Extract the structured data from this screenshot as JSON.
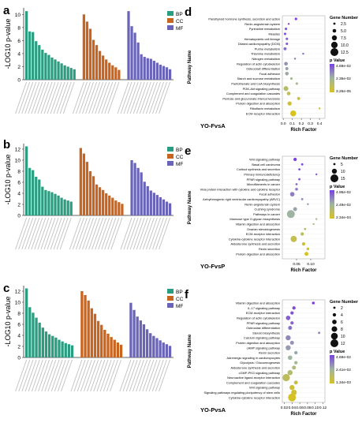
{
  "panels": {
    "a": "a",
    "b": "b",
    "c": "c",
    "d": "d",
    "e": "e",
    "f": "f"
  },
  "go_charts": [
    {
      "id": "a",
      "ylabel": "-LOG10 p-value",
      "yticks": [
        "0",
        "2",
        "4",
        "6",
        "8",
        "10"
      ],
      "ymax": 11,
      "legend": [
        "BP",
        "CC",
        "MF"
      ],
      "groups": [
        {
          "name": "BP",
          "values": [
            10.5,
            7.4,
            7.3,
            5.9,
            5.3,
            4.6,
            4.1,
            3.8,
            3.4,
            3.1,
            2.8,
            2.5,
            2.2,
            2.0,
            1.8,
            1.6
          ]
        },
        {
          "name": "CC",
          "values": [
            10.0,
            8.9,
            7.8,
            6.1,
            5.3,
            4.4,
            3.7,
            3.1,
            2.6,
            2.2,
            1.9,
            1.5
          ]
        },
        {
          "name": "MF",
          "values": [
            10.5,
            8.2,
            7.2,
            5.7,
            3.9,
            3.5,
            3.3,
            3.2,
            2.9,
            2.6,
            2.3,
            2.1,
            1.9,
            1.6
          ]
        }
      ]
    },
    {
      "id": "b",
      "ylabel": "-LOG10 p-value",
      "yticks": [
        "0",
        "2",
        "4",
        "6",
        "8",
        "10",
        "12"
      ],
      "ymax": 13,
      "legend": [
        "BP",
        "CC",
        "MF"
      ],
      "groups": [
        {
          "name": "BP",
          "values": [
            12.5,
            8.6,
            8.2,
            7.0,
            6.5,
            5.2,
            4.6,
            4.4,
            4.2,
            3.9,
            3.6,
            3.2,
            2.9,
            2.7,
            2.5
          ]
        },
        {
          "name": "CC",
          "values": [
            12.2,
            11.2,
            9.7,
            8.0,
            7.1,
            5.6,
            5.1,
            4.6,
            4.0,
            3.6,
            3.2,
            2.7,
            2.4,
            2.1
          ]
        },
        {
          "name": "MF",
          "values": [
            10.0,
            9.5,
            8.6,
            7.8,
            6.1,
            5.3,
            4.5,
            4.1,
            3.7,
            3.3,
            2.9,
            2.5,
            2.2
          ]
        }
      ]
    },
    {
      "id": "c",
      "ylabel": "-LOG10 p-value",
      "yticks": [
        "0",
        "2",
        "4",
        "6",
        "8",
        "10",
        "12"
      ],
      "ymax": 13,
      "legend": [
        "BP",
        "CC",
        "MF"
      ],
      "groups": [
        {
          "name": "BP",
          "values": [
            12.5,
            9.1,
            8.1,
            7.2,
            6.3,
            5.4,
            4.7,
            4.2,
            3.9,
            3.6,
            3.2,
            2.9,
            2.6,
            2.4,
            2.2
          ]
        },
        {
          "name": "CC",
          "values": [
            12.0,
            11.3,
            10.3,
            8.9,
            7.9,
            6.6,
            5.9,
            5.0,
            4.3,
            3.7,
            3.2,
            2.7,
            2.3
          ]
        },
        {
          "name": "MF",
          "values": [
            9.9,
            8.6,
            7.4,
            6.7,
            6.0,
            5.1,
            4.4,
            3.9,
            3.5,
            3.1,
            2.7,
            2.4,
            2.1
          ]
        }
      ]
    }
  ],
  "chart_data": [
    {
      "type": "scatter",
      "panel": "d",
      "title": "YO-FvsA",
      "xlabel": "Rich Factor",
      "ylabel": "Pathway Name",
      "xticks": [
        "0.0",
        "0.1",
        "0.2",
        "0.3",
        "0.4"
      ],
      "xlim": [
        -0.01,
        0.46
      ],
      "size_legend_title": "Gene Number",
      "size_legend": [
        "2.5",
        "5.0",
        "7.5",
        "10.0",
        "12.5"
      ],
      "size_range": [
        2.5,
        12.5
      ],
      "color_legend_title": "p Value",
      "color_legend": [
        "4.69e-02",
        "2.35e-02",
        "3.26e-05"
      ],
      "points": [
        {
          "name": "Parathyroid hormone synthesis, secretion and action",
          "x": 0.14,
          "size": 3,
          "p": 0.04
        },
        {
          "name": "Renin-angiotensin system",
          "x": 0.06,
          "size": 2,
          "p": 0.038
        },
        {
          "name": "Pyrimidine metabolism",
          "x": 0.03,
          "size": 3,
          "p": 0.036
        },
        {
          "name": "Measles",
          "x": 0.02,
          "size": 3,
          "p": 0.036
        },
        {
          "name": "Hematopoietic cell lineage",
          "x": 0.04,
          "size": 3,
          "p": 0.034
        },
        {
          "name": "Dilated cardiomyopathy (DCM)",
          "x": 0.04,
          "size": 3,
          "p": 0.034
        },
        {
          "name": "Purine metabolism",
          "x": 0.02,
          "size": 4,
          "p": 0.032
        },
        {
          "name": "Thiamine metabolism",
          "x": 0.22,
          "size": 2,
          "p": 0.032
        },
        {
          "name": "Nitrogen metabolism",
          "x": 0.13,
          "size": 2,
          "p": 0.03
        },
        {
          "name": "Regulation of actin cytoskeleton",
          "x": 0.03,
          "size": 5,
          "p": 0.026
        },
        {
          "name": "Osteoclast differentiation",
          "x": 0.04,
          "size": 4,
          "p": 0.024
        },
        {
          "name": "Focal adhesion",
          "x": 0.04,
          "size": 5,
          "p": 0.022
        },
        {
          "name": "Starch and sucrose metabolism",
          "x": 0.09,
          "size": 3,
          "p": 0.018
        },
        {
          "name": "Pantothenate and CoA biosynthesis",
          "x": 0.15,
          "size": 3,
          "p": 0.016
        },
        {
          "name": "PI3K-Akt signaling pathway",
          "x": 0.03,
          "size": 7,
          "p": 0.012
        },
        {
          "name": "Complement and coagulation cascades",
          "x": 0.06,
          "size": 5,
          "p": 0.008
        },
        {
          "name": "Pentose and glucuronate interconversions",
          "x": 0.17,
          "size": 4,
          "p": 0.006
        },
        {
          "name": "Protein digestion and absorption",
          "x": 0.07,
          "size": 6,
          "p": 0.004
        },
        {
          "name": "Riboflavin metabolism",
          "x": 0.4,
          "size": 2,
          "p": 0.002
        },
        {
          "name": "ECM-receptor interaction",
          "x": 0.11,
          "size": 9,
          "p": 0.0001
        }
      ]
    },
    {
      "type": "scatter",
      "panel": "e",
      "title": "YO-FvsP",
      "xlabel": "Rich Factor",
      "ylabel": "Pathway Name",
      "xticks": [
        "0.05",
        "0.10"
      ],
      "xlim": [
        0.0,
        0.15
      ],
      "size_legend_title": "Gene Number",
      "size_legend": [
        "5",
        "10",
        "15"
      ],
      "size_range": [
        5,
        15
      ],
      "color_legend_title": "p Value",
      "color_legend": [
        "4.95e-02",
        "2.49e-02",
        "2.34e-04"
      ],
      "points": [
        {
          "name": "Wnt signaling pathway",
          "x": 0.045,
          "size": 7,
          "p": 0.045
        },
        {
          "name": "Basal cell carcinoma",
          "x": 0.07,
          "size": 5,
          "p": 0.044
        },
        {
          "name": "Cortisol synthesis and secretion",
          "x": 0.06,
          "size": 5,
          "p": 0.042
        },
        {
          "name": "Primary immunodeficiency",
          "x": 0.12,
          "size": 4,
          "p": 0.041
        },
        {
          "name": "PPAR signaling pathway",
          "x": 0.06,
          "size": 5,
          "p": 0.039
        },
        {
          "name": "Microfilaments in cancer",
          "x": 0.05,
          "size": 5,
          "p": 0.037
        },
        {
          "name": "Viral protein interaction with cytokine and cytokine receptor",
          "x": 0.05,
          "size": 6,
          "p": 0.035
        },
        {
          "name": "Focal adhesion",
          "x": 0.035,
          "size": 9,
          "p": 0.033
        },
        {
          "name": "Arrhythmogenic right ventricular cardiomyopathy (ARVC)",
          "x": 0.07,
          "size": 5,
          "p": 0.031
        },
        {
          "name": "Renin-angiotensin system",
          "x": 0.09,
          "size": 4,
          "p": 0.029
        },
        {
          "name": "Cushing syndrome",
          "x": 0.045,
          "size": 8,
          "p": 0.026
        },
        {
          "name": "Pathways in cancer",
          "x": 0.03,
          "size": 15,
          "p": 0.023
        },
        {
          "name": "Mannose type O-glycan biosynthesis",
          "x": 0.12,
          "size": 4,
          "p": 0.02
        },
        {
          "name": "Vitamin digestion and absorption",
          "x": 0.11,
          "size": 4,
          "p": 0.017
        },
        {
          "name": "Ovarian steroidogenesis",
          "x": 0.08,
          "size": 5,
          "p": 0.014
        },
        {
          "name": "ECM-receptor interaction",
          "x": 0.07,
          "size": 7,
          "p": 0.011
        },
        {
          "name": "Cytokine-cytokine receptor interaction",
          "x": 0.04,
          "size": 12,
          "p": 0.008
        },
        {
          "name": "Aldosterone synthesis and secretion",
          "x": 0.075,
          "size": 7,
          "p": 0.005
        },
        {
          "name": "Renin secretion",
          "x": 0.09,
          "size": 6,
          "p": 0.003
        },
        {
          "name": "Protein digestion and absorption",
          "x": 0.085,
          "size": 8,
          "p": 0.0003
        }
      ]
    },
    {
      "type": "scatter",
      "panel": "f",
      "title": "YO-PvsA",
      "xlabel": "Rich Factor",
      "ylabel": "Pathway Name",
      "xticks": [
        "0.02",
        "0.04",
        "0.06",
        "0.08",
        "0.10",
        "0.12"
      ],
      "xlim": [
        0.015,
        0.125
      ],
      "size_legend_title": "Gene Number",
      "size_legend": [
        "2",
        "4",
        "6",
        "8",
        "10",
        "12"
      ],
      "size_range": [
        2,
        12
      ],
      "color_legend_title": "p Value",
      "color_legend": [
        "4.69e-02",
        "2.41e-02",
        "1.34e-03"
      ],
      "points": [
        {
          "name": "Vitamin digestion and absorption",
          "x": 0.095,
          "size": 3,
          "p": 0.046
        },
        {
          "name": "IL-17 signaling pathway",
          "x": 0.045,
          "size": 4,
          "p": 0.044
        },
        {
          "name": "ECM-receptor interaction",
          "x": 0.04,
          "size": 4,
          "p": 0.042
        },
        {
          "name": "Regulation of actin cytoskeleton",
          "x": 0.03,
          "size": 6,
          "p": 0.04
        },
        {
          "name": "PPAR signaling pathway",
          "x": 0.04,
          "size": 4,
          "p": 0.039
        },
        {
          "name": "Osteoclast differentiation",
          "x": 0.035,
          "size": 5,
          "p": 0.037
        },
        {
          "name": "Steroid biosynthesis",
          "x": 0.11,
          "size": 2,
          "p": 0.035
        },
        {
          "name": "Calcium signaling pathway",
          "x": 0.03,
          "size": 7,
          "p": 0.032
        },
        {
          "name": "Protein digestion and absorption",
          "x": 0.04,
          "size": 5,
          "p": 0.03
        },
        {
          "name": "cAMP signaling pathway",
          "x": 0.03,
          "size": 7,
          "p": 0.028
        },
        {
          "name": "Renin secretion",
          "x": 0.05,
          "size": 4,
          "p": 0.026
        },
        {
          "name": "Adrenergic signaling in cardiomyocytes",
          "x": 0.035,
          "size": 6,
          "p": 0.023
        },
        {
          "name": "Glycolysis / Gluconeogenesis",
          "x": 0.05,
          "size": 4,
          "p": 0.02
        },
        {
          "name": "Aldosterone synthesis and secretion",
          "x": 0.045,
          "size": 5,
          "p": 0.017
        },
        {
          "name": "cGMP-PKG signaling pathway",
          "x": 0.035,
          "size": 7,
          "p": 0.014
        },
        {
          "name": "Neuroactive ligand-receptor interaction",
          "x": 0.025,
          "size": 11,
          "p": 0.011
        },
        {
          "name": "Complement and coagulation cascades",
          "x": 0.05,
          "size": 5,
          "p": 0.008
        },
        {
          "name": "Wnt signaling pathway",
          "x": 0.04,
          "size": 7,
          "p": 0.005
        },
        {
          "name": "Signaling pathways regulating pluripotency of stem cells",
          "x": 0.045,
          "size": 8,
          "p": 0.003
        },
        {
          "name": "Cytokine-cytokine receptor interaction",
          "x": 0.04,
          "size": 12,
          "p": 0.0013
        }
      ]
    }
  ],
  "colors": {
    "BP": "#2a9d80",
    "CC": "#c8641e",
    "MF": "#6a64b8",
    "p_high": "#7b3fe4",
    "p_mid": "#9fb6a0",
    "p_low": "#d8c21e"
  }
}
